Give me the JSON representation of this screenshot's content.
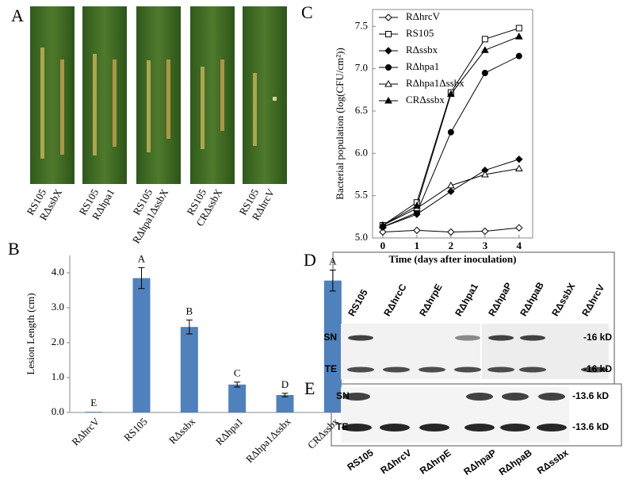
{
  "panels": [
    "A",
    "B",
    "C",
    "D",
    "E"
  ],
  "leaves": {
    "labels": [
      "RS105",
      "RΔssbX",
      "RS105",
      "RΔhpa1",
      "RS105",
      "RΔhpa1ΔssbX",
      "RS105",
      "CRΔssbX",
      "RS105",
      "RΔhrcV"
    ]
  },
  "chart_data": [
    {
      "type": "bar",
      "y_label": "Lesion Length (cm)",
      "categories": [
        "RΔhrcV",
        "RS105",
        "RΔssbx",
        "RΔhpa1",
        "RΔhpa1Δssbx",
        "CRΔssbx"
      ],
      "values": [
        0.02,
        3.85,
        2.45,
        0.8,
        0.5,
        3.78
      ],
      "errors": [
        0,
        0.3,
        0.2,
        0.07,
        0.05,
        0.3
      ],
      "annotations": [
        "E",
        "A",
        "B",
        "C",
        "D",
        "A"
      ],
      "color": "#4f81bd",
      "ylim": [
        0,
        4.5
      ],
      "yticks": [
        {
          "value": 0,
          "label": "0.0"
        },
        {
          "value": 1,
          "label": "1.0"
        },
        {
          "value": 2,
          "label": "2.0"
        },
        {
          "value": 3,
          "label": "3.0"
        },
        {
          "value": 4,
          "label": "4.0"
        }
      ]
    },
    {
      "type": "line",
      "x_label": "Time (days after inoculation)",
      "y_label": "Bacterial population (log(CFU/cm²))",
      "x": [
        0,
        1,
        2,
        3,
        4
      ],
      "series": [
        {
          "name": "RΔhrcV",
          "color": "#000000",
          "marker": "diamond-open",
          "values": [
            5.07,
            5.09,
            5.07,
            5.08,
            5.12
          ]
        },
        {
          "name": "RS105",
          "color": "#000000",
          "marker": "square-open",
          "values": [
            5.15,
            5.42,
            6.72,
            7.35,
            7.48
          ]
        },
        {
          "name": "RΔssbx",
          "color": "#000000",
          "marker": "diamond",
          "values": [
            5.13,
            5.28,
            5.55,
            5.8,
            5.93
          ]
        },
        {
          "name": "RΔhpa1",
          "color": "#000000",
          "marker": "circle",
          "values": [
            5.13,
            5.3,
            6.25,
            6.95,
            7.15
          ]
        },
        {
          "name": "RΔhpa1Δssbx",
          "color": "#000000",
          "marker": "triangle-open",
          "values": [
            5.15,
            5.35,
            5.62,
            5.75,
            5.82
          ]
        },
        {
          "name": "CRΔssbx",
          "color": "#000000",
          "marker": "triangle",
          "values": [
            5.15,
            5.38,
            6.7,
            7.22,
            7.38
          ]
        }
      ],
      "xlim": [
        -0.3,
        4.4
      ],
      "xticks": [
        0,
        1,
        2,
        3,
        4
      ],
      "ylim": [
        5.0,
        7.7
      ],
      "yticks": [
        {
          "value": 5,
          "label": "5.0"
        },
        5.5,
        {
          "value": 6,
          "label": "6.0"
        },
        6.5,
        {
          "value": 7,
          "label": "7.0"
        },
        7.5
      ]
    }
  ],
  "blot_d": {
    "lanes": [
      "RS105",
      "RΔhrcC",
      "RΔhrpE",
      "RΔhpa1",
      "RΔhpaP",
      "RΔhpaB",
      "RΔssbX",
      "RΔhrcV"
    ],
    "rows": [
      "SN",
      "TE"
    ],
    "sizes": [
      "-16 kD",
      "-16 kD"
    ]
  },
  "blot_e": {
    "lanes": [
      "RS105",
      "RΔhrcV",
      "RΔhrpE",
      "RΔhpaP",
      "RΔhpaB",
      "RΔssbx"
    ],
    "rows": [
      "SN",
      "TE"
    ],
    "sizes": [
      "-13.6 kD",
      "-13.6 kD"
    ]
  }
}
